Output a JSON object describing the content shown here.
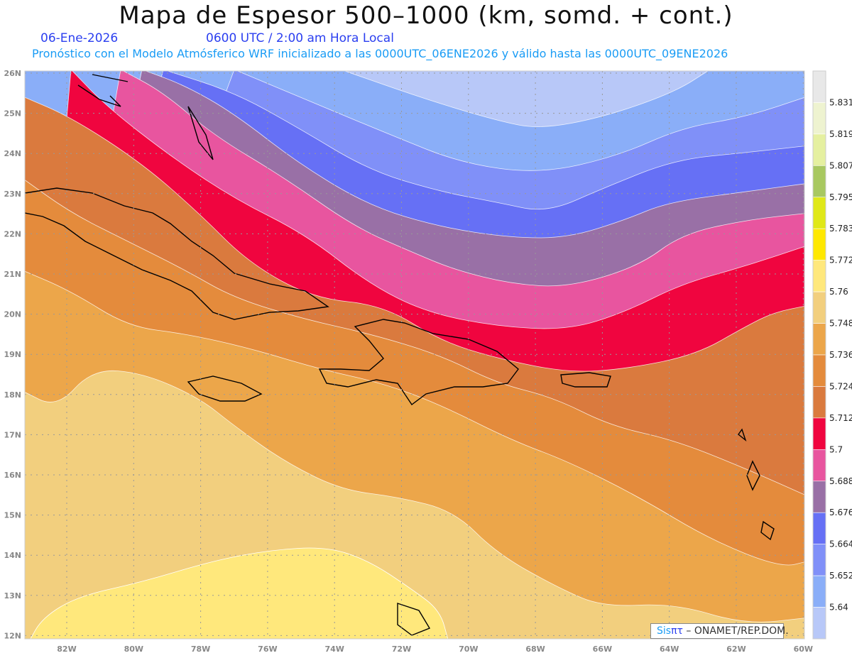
{
  "header": {
    "title": "Mapa de Espesor 500–1000 (km, somd. + cont.)",
    "date": "06-Ene-2026",
    "time": "0600 UTC / 2:00 am Hora Local",
    "info": "Pronóstico con el Modelo Atmósferico WRF inicializado a las 0000UTC_06ENE2026 y válido hasta las  0000UTC_09ENE2026"
  },
  "axes": {
    "lat_labels": [
      "26N",
      "25N",
      "24N",
      "23N",
      "22N",
      "21N",
      "20N",
      "19N",
      "18N",
      "17N",
      "16N",
      "15N",
      "14N",
      "13N",
      "12N"
    ],
    "lon_labels": [
      "82W",
      "80W",
      "78W",
      "76W",
      "74W",
      "72W",
      "70W",
      "68W",
      "66W",
      "64W",
      "62W",
      "60W"
    ]
  },
  "colorbar": {
    "labels": [
      "5.831",
      "5.819",
      "5.807",
      "5.795",
      "5.783",
      "5.772",
      "5.76",
      "5.748",
      "5.736",
      "5.724",
      "5.712",
      "5.7",
      "5.688",
      "5.676",
      "5.664",
      "5.652",
      "5.64"
    ],
    "colors": [
      "#e8e8e8",
      "#eef3d0",
      "#e5f0a0",
      "#a8c860",
      "#e0e818",
      "#ffe800",
      "#ffe87c",
      "#f2cf7e",
      "#eca64a",
      "#e48b3c",
      "#da7a3e",
      "#f0053f",
      "#e8559f",
      "#9970a6",
      "#6670f5",
      "#8090f8",
      "#8aaef8",
      "#b8c8f8"
    ]
  },
  "credit": {
    "sis": "Sis",
    "pi": "πτ",
    "text": " –  ONAMET/REP.DOM."
  }
}
